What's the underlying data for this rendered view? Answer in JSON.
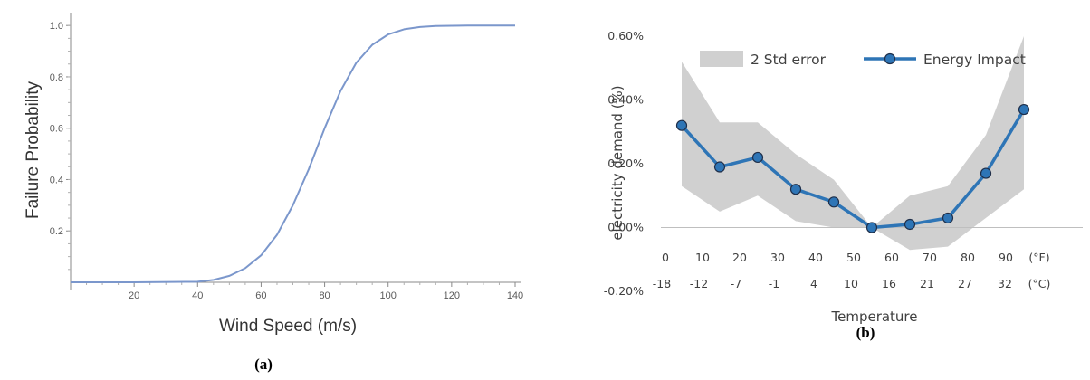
{
  "chart_data": [
    {
      "type": "line",
      "caption": "(a)",
      "xlabel": "Wind Speed (m/s)",
      "ylabel": "Failure Probability",
      "xlim": [
        0,
        140
      ],
      "ylim": [
        0,
        1.05
      ],
      "x_ticks": [
        20,
        40,
        60,
        80,
        100,
        120,
        140
      ],
      "y_ticks": [
        0.2,
        0.4,
        0.6,
        0.8,
        1.0
      ],
      "x_tick_labels": [
        "20",
        "40",
        "60",
        "80",
        "100",
        "120",
        "140"
      ],
      "y_tick_labels": [
        "0.2",
        "0.4",
        "0.6",
        "0.8",
        "1.0"
      ],
      "series": [
        {
          "x": [
            0,
            20,
            40,
            45,
            50,
            55,
            60,
            65,
            70,
            75,
            80,
            85,
            90,
            95,
            100,
            105,
            110,
            115,
            120,
            125,
            130,
            135,
            140
          ],
          "y": [
            0,
            0,
            0.002,
            0.009,
            0.025,
            0.055,
            0.105,
            0.185,
            0.3,
            0.44,
            0.6,
            0.745,
            0.855,
            0.925,
            0.965,
            0.985,
            0.994,
            0.998,
            0.999,
            1.0,
            1.0,
            1.0,
            1.0
          ]
        }
      ],
      "colors": {
        "line": "#7b97cc"
      },
      "grid": false
    },
    {
      "type": "line",
      "caption": "(b)",
      "xlabel": "Temperature",
      "ylabel": "electricity demand (%)",
      "ylim": [
        -0.2,
        0.6
      ],
      "y_ticks": [
        -0.2,
        0.0,
        0.2,
        0.4,
        0.6
      ],
      "y_tick_labels": [
        "-0.20%",
        "0.00%",
        "0.20%",
        "0.40%",
        "0.60%"
      ],
      "x_ticks_f": [
        "0",
        "10",
        "20",
        "30",
        "40",
        "50",
        "60",
        "70",
        "80",
        "90",
        "(°F)"
      ],
      "x_ticks_c": [
        "-18",
        "-12",
        "-7",
        "-1",
        "4",
        "10",
        "16",
        "21",
        "27",
        "32",
        "(°C)"
      ],
      "legend": [
        "2 Std error",
        "Energy Impact"
      ],
      "legend_position": "top",
      "x": [
        5,
        15,
        25,
        35,
        45,
        55,
        65,
        75,
        85,
        95
      ],
      "series": [
        {
          "name": "Energy Impact",
          "values": [
            0.32,
            0.19,
            0.22,
            0.12,
            0.08,
            0.0,
            0.01,
            0.03,
            0.17,
            0.37
          ]
        },
        {
          "name": "2 Std error",
          "upper": [
            0.52,
            0.33,
            0.33,
            0.23,
            0.15,
            0.0,
            0.1,
            0.13,
            0.29,
            0.6
          ],
          "lower": [
            0.13,
            0.05,
            0.1,
            0.02,
            0.0,
            0.0,
            -0.07,
            -0.06,
            0.03,
            0.12
          ]
        }
      ],
      "colors": {
        "line": "#2e75b6",
        "marker_fill": "#2e75b6",
        "marker_edge": "#1f2f4a",
        "band": "#d0d0d0",
        "axis": "#bfbfbf"
      },
      "grid": false
    }
  ]
}
